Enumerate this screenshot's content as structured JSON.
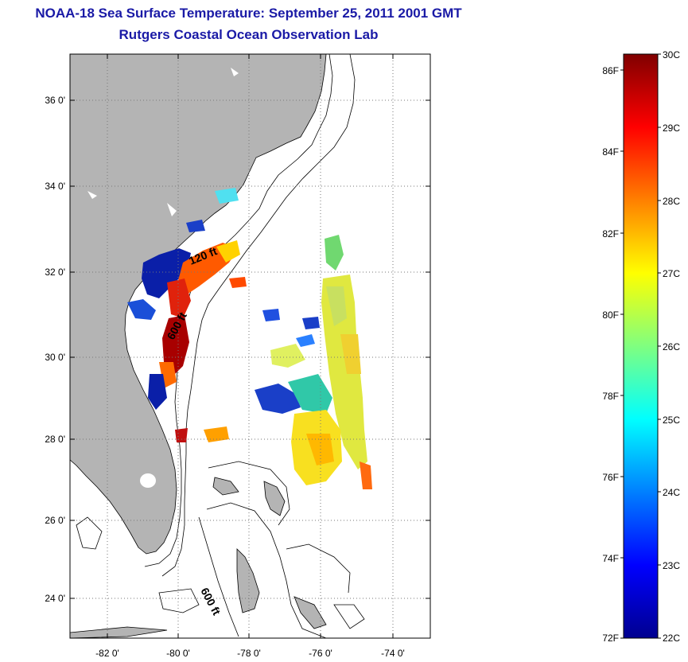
{
  "header": {
    "title": "NOAA-18 Sea Surface Temperature:  September 25, 2011 2001 GMT",
    "subtitle": "Rutgers Coastal Ocean Observation Lab"
  },
  "map": {
    "lat_ticks": [
      "36 0'",
      "34 0'",
      "32 0'",
      "30 0'",
      "28 0'",
      "26 0'",
      "24 0'"
    ],
    "lon_ticks": [
      "-82 0'",
      "-80 0'",
      "-78 0'",
      "-76 0'",
      "-74 0'"
    ],
    "contour_labels": [
      "120 ft",
      "600 ft",
      "600 ft"
    ],
    "land_color": "#b4b4b4",
    "grid": "dotted"
  },
  "colorbar": {
    "range_c": [
      22,
      30
    ],
    "range_f": [
      72,
      86
    ],
    "celsius_labels": [
      "30C",
      "29C",
      "28C",
      "27C",
      "26C",
      "25C",
      "24C",
      "23C",
      "22C"
    ],
    "fahrenheit_labels": [
      "86F",
      "84F",
      "82F",
      "80F",
      "78F",
      "76F",
      "74F",
      "72F"
    ],
    "colormap": "jet"
  }
}
